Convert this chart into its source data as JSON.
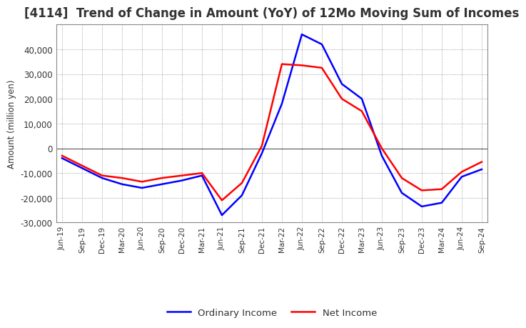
{
  "title": "[4114]  Trend of Change in Amount (YoY) of 12Mo Moving Sum of Incomes",
  "ylabel": "Amount (million yen)",
  "background_color": "#ffffff",
  "grid_color": "#888888",
  "title_fontsize": 12,
  "tick_labels": [
    "Jun-19",
    "Sep-19",
    "Dec-19",
    "Mar-20",
    "Jun-20",
    "Sep-20",
    "Dec-20",
    "Mar-21",
    "Jun-21",
    "Sep-21",
    "Dec-21",
    "Mar-22",
    "Jun-22",
    "Sep-22",
    "Dec-22",
    "Mar-23",
    "Jun-23",
    "Sep-23",
    "Dec-23",
    "Mar-24",
    "Jun-24",
    "Sep-24"
  ],
  "ordinary_income": [
    -4000,
    -8000,
    -12000,
    -14500,
    -16000,
    -14500,
    -13000,
    -11000,
    -27000,
    -19000,
    -2000,
    18000,
    46000,
    42000,
    26000,
    20000,
    -3000,
    -18000,
    -23500,
    -22000,
    -11500,
    -8500
  ],
  "net_income": [
    -3000,
    -7000,
    -11000,
    -12000,
    -13500,
    -12000,
    -11000,
    -10000,
    -21000,
    -14000,
    1000,
    34000,
    33500,
    32500,
    20000,
    15000,
    0,
    -12000,
    -17000,
    -16500,
    -9500,
    -5500
  ],
  "ordinary_color": "#0000ff",
  "net_color": "#ff0000",
  "ylim": [
    -30000,
    50000
  ],
  "yticks": [
    -30000,
    -20000,
    -10000,
    0,
    10000,
    20000,
    30000,
    40000
  ]
}
